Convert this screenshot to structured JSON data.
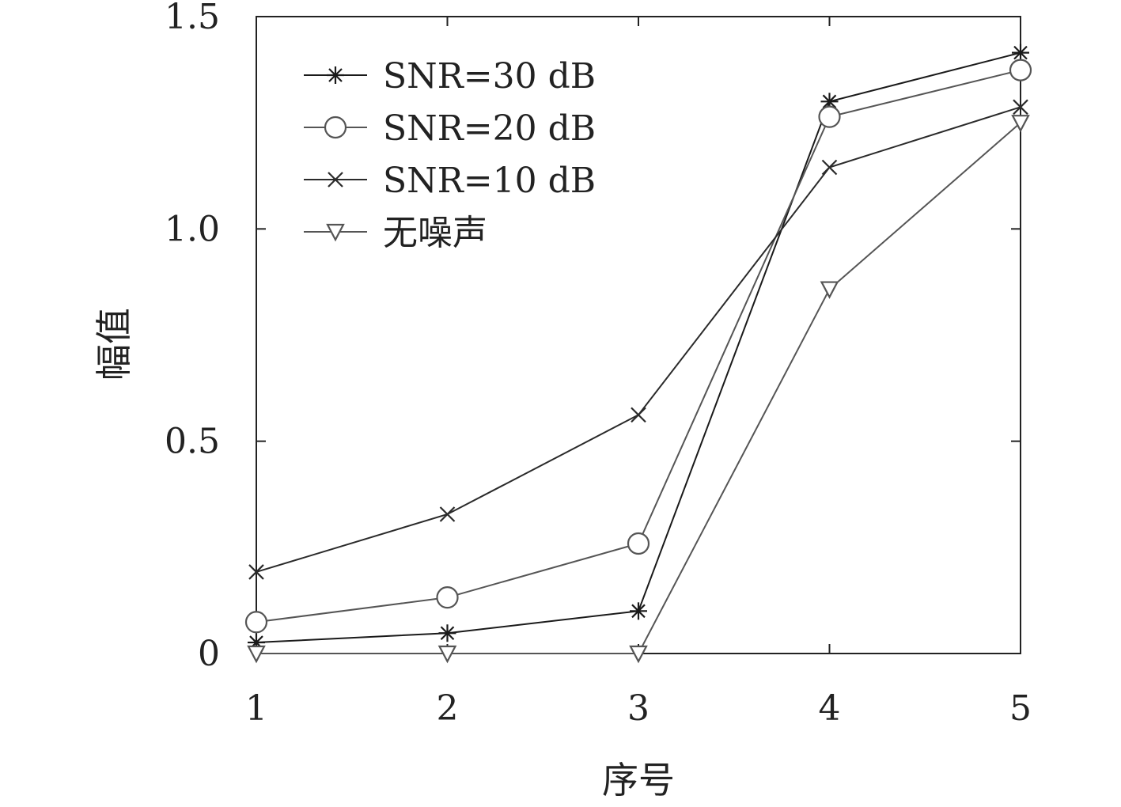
{
  "chart_data": {
    "type": "line",
    "title": "",
    "xlabel": "序号",
    "ylabel": "幅值",
    "x": [
      1,
      2,
      3,
      4,
      5
    ],
    "xlim": [
      1,
      5
    ],
    "ylim": [
      0,
      1.5
    ],
    "xticks": [
      "1",
      "2",
      "3",
      "4",
      "5"
    ],
    "yticks": [
      {
        "v": 0,
        "label": "0"
      },
      {
        "v": 0.5,
        "label": "0.5"
      },
      {
        "v": 1.0,
        "label": "1.0"
      },
      {
        "v": 1.5,
        "label": "1.5"
      }
    ],
    "grid": false,
    "legend_position": "top-left",
    "series": [
      {
        "name": "SNR=30 dB",
        "marker": "asterisk",
        "color": "#1a1a1a",
        "values": [
          0.026,
          0.048,
          0.1,
          1.3,
          1.415
        ]
      },
      {
        "name": "SNR=20 dB",
        "marker": "circle",
        "color": "#555555",
        "values": [
          0.074,
          0.132,
          0.259,
          1.264,
          1.374
        ]
      },
      {
        "name": "SNR=10 dB",
        "marker": "x",
        "color": "#2a2a2a",
        "values": [
          0.192,
          0.328,
          0.562,
          1.145,
          1.287
        ]
      },
      {
        "name": "无噪声",
        "marker": "triangle-down",
        "color": "#555555",
        "values": [
          0,
          0,
          0,
          0.858,
          1.25
        ]
      }
    ]
  }
}
